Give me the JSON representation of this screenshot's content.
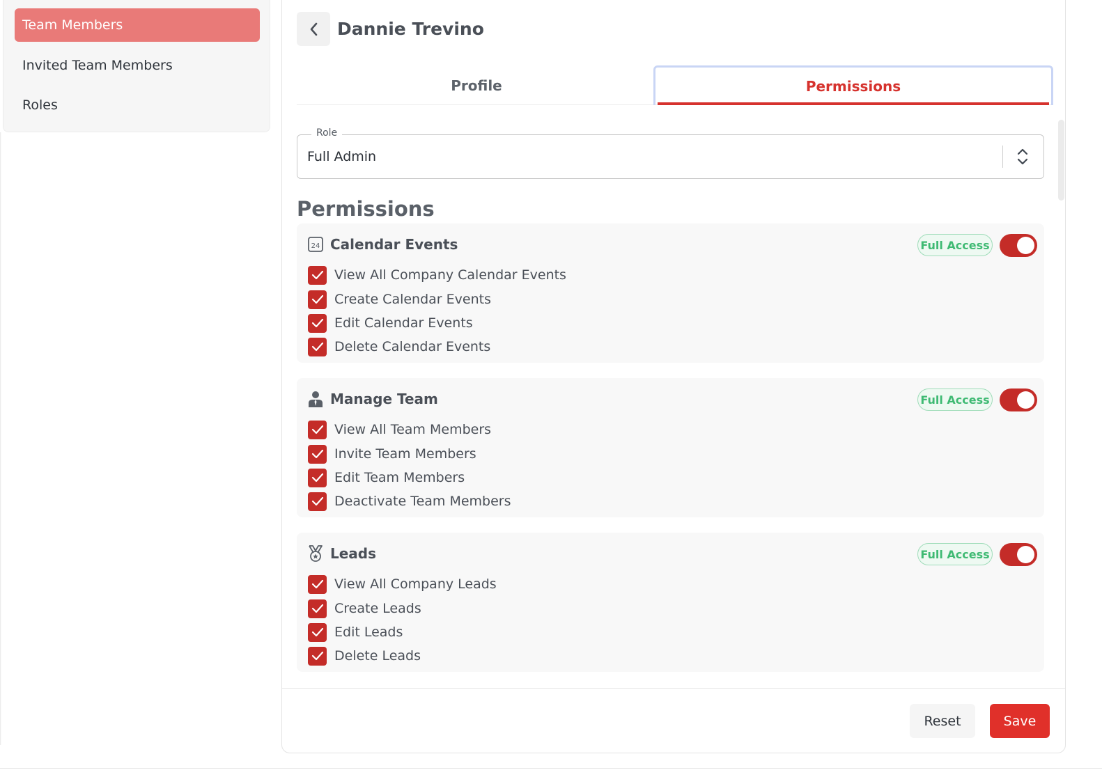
{
  "sidebar": {
    "items": [
      {
        "label": "Team Members",
        "active": true
      },
      {
        "label": "Invited Team Members",
        "active": false
      },
      {
        "label": "Roles",
        "active": false
      }
    ]
  },
  "header": {
    "title": "Dannie Trevino",
    "back_icon": "chevron-left-icon"
  },
  "tabs": [
    {
      "label": "Profile",
      "active": false
    },
    {
      "label": "Permissions",
      "active": true
    }
  ],
  "role": {
    "legend": "Role",
    "value": "Full Admin"
  },
  "permissions": {
    "heading": "Permissions",
    "groups": [
      {
        "title": "Calendar Events",
        "icon": "calendar-24-icon",
        "badge": "Full Access",
        "enabled": true,
        "items": [
          {
            "label": "View All Company Calendar Events",
            "checked": true
          },
          {
            "label": "Create Calendar Events",
            "checked": true
          },
          {
            "label": "Edit Calendar Events",
            "checked": true
          },
          {
            "label": "Delete Calendar Events",
            "checked": true
          }
        ]
      },
      {
        "title": "Manage Team",
        "icon": "user-tie-icon",
        "badge": "Full Access",
        "enabled": true,
        "items": [
          {
            "label": "View All Team Members",
            "checked": true
          },
          {
            "label": "Invite Team Members",
            "checked": true
          },
          {
            "label": "Edit Team Members",
            "checked": true
          },
          {
            "label": "Deactivate Team Members",
            "checked": true
          }
        ]
      },
      {
        "title": "Leads",
        "icon": "medal-icon",
        "badge": "Full Access",
        "enabled": true,
        "items": [
          {
            "label": "View All Company Leads",
            "checked": true
          },
          {
            "label": "Create Leads",
            "checked": true
          },
          {
            "label": "Edit Leads",
            "checked": true
          },
          {
            "label": "Delete Leads",
            "checked": true
          }
        ]
      }
    ]
  },
  "footer": {
    "reset_label": "Reset",
    "save_label": "Save"
  },
  "colors": {
    "accent": "#c42c28",
    "sidebar_active": "#e97a78",
    "badge_green": "#3fba73",
    "save_button": "#e0302a"
  }
}
